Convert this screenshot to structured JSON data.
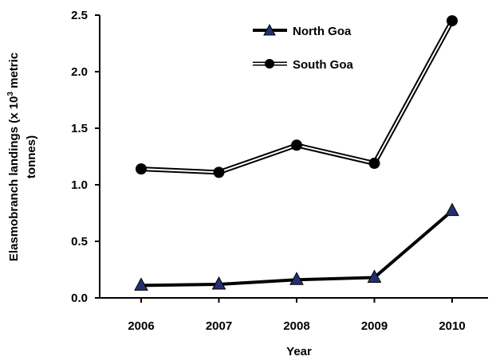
{
  "chart_data": {
    "type": "line",
    "title": "",
    "xlabel": "Year",
    "ylabel_line1": "Elasmobranch landings (x 10",
    "ylabel_sup": "3",
    "ylabel_line1_end": " metric",
    "ylabel_line2": "tonnes)",
    "categories": [
      "2006",
      "2007",
      "2008",
      "2009",
      "2010"
    ],
    "ylim": [
      0,
      2.5
    ],
    "yticks": [
      "0.0",
      "0.5",
      "1.0",
      "1.5",
      "2.0",
      "2.5"
    ],
    "grid": false,
    "legend_position": "top-center",
    "series": [
      {
        "name": "North Goa",
        "marker": "triangle",
        "values": [
          0.11,
          0.12,
          0.16,
          0.18,
          0.77
        ],
        "line_color": "#000000",
        "marker_color": "#22316e"
      },
      {
        "name": "South Goa",
        "marker": "circle",
        "values": [
          1.14,
          1.11,
          1.35,
          1.19,
          2.45
        ],
        "line_color": "#000000",
        "marker_color": "#000000"
      }
    ]
  }
}
